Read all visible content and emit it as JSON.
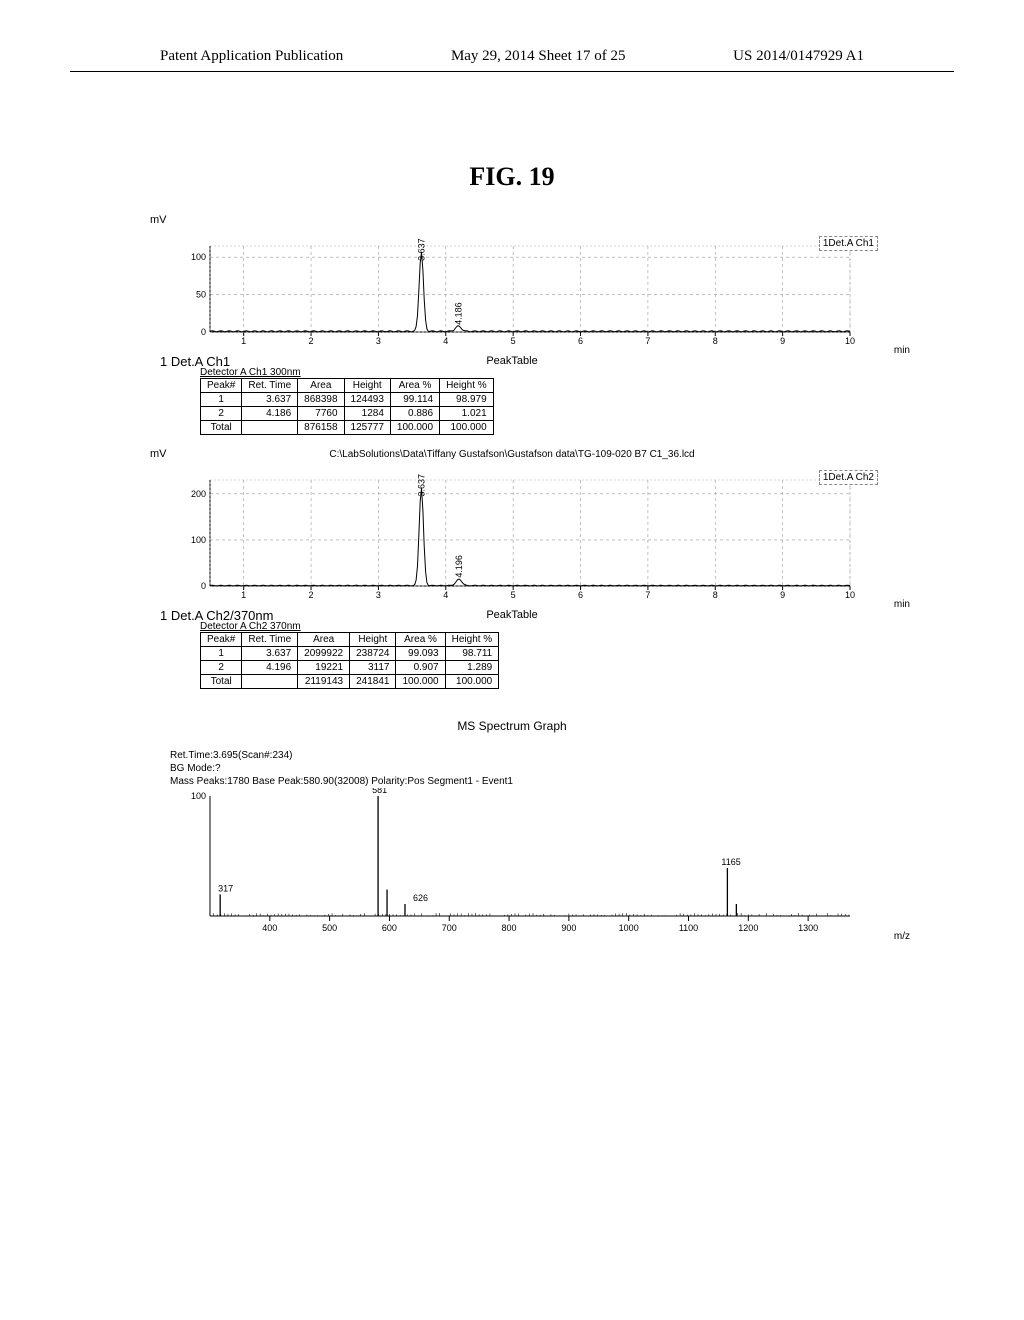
{
  "header": {
    "left": "Patent Application Publication",
    "center": "May 29, 2014  Sheet 17 of 25",
    "right": "US 2014/0147929 A1"
  },
  "figure_title": "FIG. 19",
  "chart1": {
    "ylabel": "mV",
    "legend": "1Det.A Ch1",
    "yticks": [
      0,
      50,
      100
    ],
    "xticks": [
      1,
      2,
      3,
      4,
      5,
      6,
      7,
      8,
      9,
      10
    ],
    "xunit": "min",
    "peak_labels": [
      "3.637",
      "4.186"
    ],
    "label": "1 Det.A Ch1",
    "table_title": "PeakTable",
    "table_sub": "Detector A Ch1 300nm",
    "columns": [
      "Peak#",
      "Ret. Time",
      "Area",
      "Height",
      "Area %",
      "Height %"
    ],
    "rows": [
      [
        "1",
        "3.637",
        "868398",
        "124493",
        "99.114",
        "98.979"
      ],
      [
        "2",
        "4.186",
        "7760",
        "1284",
        "0.886",
        "1.021"
      ],
      [
        "Total",
        "",
        "876158",
        "125777",
        "100.000",
        "100.000"
      ]
    ]
  },
  "filepath": "C:\\LabSolutions\\Data\\Tiffany Gustafson\\Gustafson data\\TG-109-020 B7 C1_36.lcd",
  "chart2": {
    "ylabel": "mV",
    "legend": "1Det.A Ch2",
    "yticks": [
      0,
      100,
      200
    ],
    "xticks": [
      1,
      2,
      3,
      4,
      5,
      6,
      7,
      8,
      9,
      10
    ],
    "xunit": "min",
    "peak_labels": [
      "3.637",
      "4.196"
    ],
    "label": "1 Det.A Ch2/370nm",
    "table_title": "PeakTable",
    "table_sub": "Detector A Ch2 370nm",
    "columns": [
      "Peak#",
      "Ret. Time",
      "Area",
      "Height",
      "Area %",
      "Height %"
    ],
    "rows": [
      [
        "1",
        "3.637",
        "2099922",
        "238724",
        "99.093",
        "98.711"
      ],
      [
        "2",
        "4.196",
        "19221",
        "3117",
        "0.907",
        "1.289"
      ],
      [
        "Total",
        "",
        "2119143",
        "241841",
        "100.000",
        "100.000"
      ]
    ]
  },
  "ms": {
    "title": "MS Spectrum Graph",
    "meta1": "Ret.Time:3.695(Scan#:234)",
    "meta2": "BG Mode:?",
    "meta3": "Mass Peaks:1780   Base Peak:580.90(32008)   Polarity:Pos   Segment1 - Event1",
    "ylabel": "100",
    "xticks": [
      400,
      500,
      600,
      700,
      800,
      900,
      1000,
      1100,
      1200,
      1300
    ],
    "xunit": "m/z",
    "peaks": [
      {
        "x": 317,
        "h": 18,
        "label": "317",
        "lx": -2,
        "ly": -3
      },
      {
        "x": 581,
        "h": 100,
        "label": "581",
        "lx": -6,
        "ly": -3
      },
      {
        "x": 596,
        "h": 22,
        "label": "",
        "lx": 0,
        "ly": 0
      },
      {
        "x": 626,
        "h": 10,
        "label": "626",
        "lx": 8,
        "ly": -3
      },
      {
        "x": 1165,
        "h": 40,
        "label": "1165",
        "lx": -6,
        "ly": -3
      },
      {
        "x": 1180,
        "h": 10,
        "label": "",
        "lx": 0,
        "ly": 0
      }
    ]
  },
  "colors": {
    "axis": "#000000",
    "grid": "#999999",
    "trace": "#000000"
  }
}
